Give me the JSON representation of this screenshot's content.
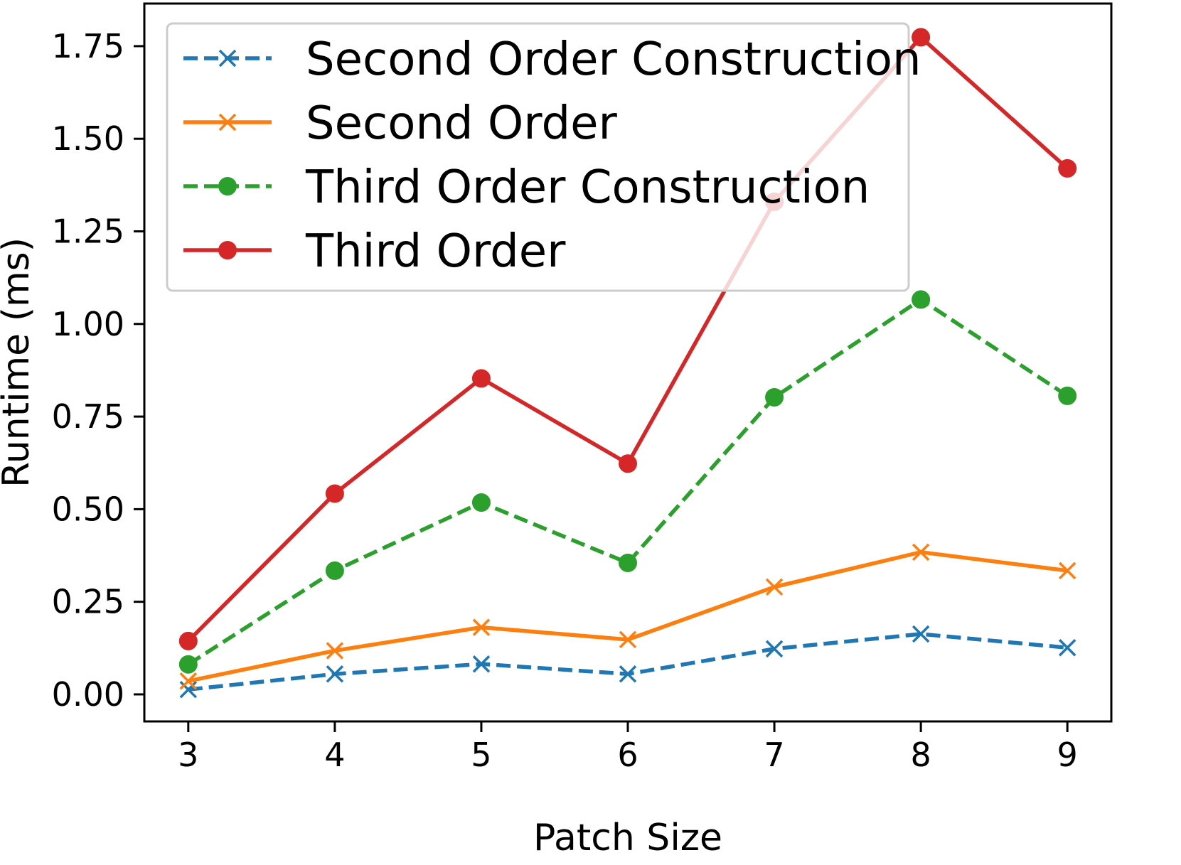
{
  "chart_data": {
    "type": "line",
    "title": "",
    "xlabel": "Patch Size",
    "ylabel": "Runtime (ms)",
    "x": [
      3,
      4,
      5,
      6,
      7,
      8,
      9
    ],
    "xticks": [
      "3",
      "4",
      "5",
      "6",
      "7",
      "8",
      "9"
    ],
    "yticks": [
      "0.00",
      "0.25",
      "0.50",
      "0.75",
      "1.00",
      "1.25",
      "1.50",
      "1.75"
    ],
    "ytick_values": [
      0,
      0.25,
      0.5,
      0.75,
      1.0,
      1.25,
      1.5,
      1.75
    ],
    "xlim": [
      2.7,
      9.3
    ],
    "ylim": [
      -0.073,
      1.865
    ],
    "grid": false,
    "legend_position": "top-left",
    "series": [
      {
        "name": "Second Order Construction",
        "color": "#1f77b4",
        "line": "dashed",
        "marker": "x",
        "values": [
          0.013,
          0.055,
          0.082,
          0.055,
          0.123,
          0.163,
          0.126
        ]
      },
      {
        "name": "Second Order",
        "color": "#ff7f0e",
        "line": "solid",
        "marker": "x",
        "values": [
          0.036,
          0.118,
          0.181,
          0.148,
          0.29,
          0.384,
          0.334
        ]
      },
      {
        "name": "Third Order Construction",
        "color": "#2ca02c",
        "line": "dashed",
        "marker": "circle",
        "values": [
          0.081,
          0.334,
          0.518,
          0.355,
          0.802,
          1.066,
          0.806
        ]
      },
      {
        "name": "Third Order",
        "color": "#d62728",
        "line": "solid",
        "marker": "circle",
        "values": [
          0.144,
          0.542,
          0.853,
          0.623,
          1.33,
          1.774,
          1.42
        ]
      }
    ]
  }
}
